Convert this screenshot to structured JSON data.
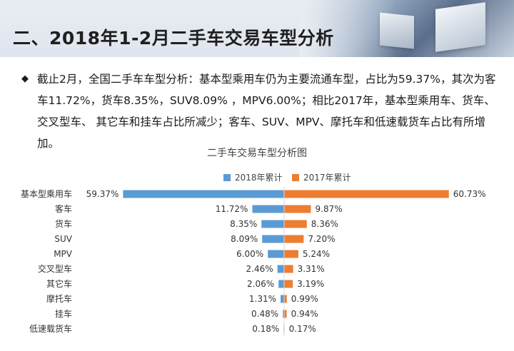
{
  "header": {
    "title": "二、2018年1-2月二手车交易车型分析"
  },
  "bullet": {
    "symbol": "◆",
    "text": "截止2月，全国二手车车型分析：基本型乘用车仍为主要流通车型，占比为59.37%，其次为客车11.72%，货车8.35%，SUV8.09% ，MPV6.00%；相比2017年，基本型乘用车、货车、交叉型车、 其它车和挂车占比所减少；客车、SUV、MPV、摩托车和低速载货车占比有所增加。"
  },
  "colors": {
    "series_2018": "#5b9bd5",
    "series_2017": "#ed7d31"
  },
  "chart_data": {
    "type": "bar",
    "orientation": "horizontal-diverging",
    "title": "二手车交易车型分析图",
    "categories": [
      "基本型乘用车",
      "客车",
      "货车",
      "SUV",
      "MPV",
      "交叉型车",
      "其它车",
      "摩托车",
      "挂车",
      "低速载货车"
    ],
    "series": [
      {
        "name": "2018年累计",
        "values": [
          59.37,
          11.72,
          8.35,
          8.09,
          6.0,
          2.46,
          2.06,
          1.31,
          0.48,
          0.18
        ],
        "labels": [
          "59.37%",
          "11.72%",
          "8.35%",
          "8.09%",
          "6.00%",
          "2.46%",
          "2.06%",
          "1.31%",
          "0.48%",
          "0.18%"
        ]
      },
      {
        "name": "2017年累计",
        "values": [
          60.73,
          9.87,
          8.36,
          7.2,
          5.24,
          3.31,
          3.19,
          0.99,
          0.94,
          0.17
        ],
        "labels": [
          "60.73%",
          "9.87%",
          "8.36%",
          "7.20%",
          "5.24%",
          "3.31%",
          "3.19%",
          "0.99%",
          "0.94%",
          "0.17%"
        ]
      }
    ],
    "legend_position": "top-center",
    "grid": false
  }
}
